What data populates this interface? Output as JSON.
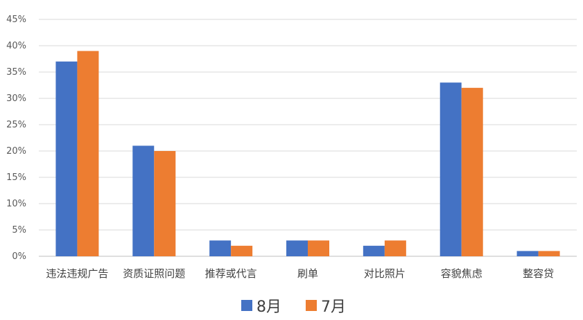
{
  "chart_data": {
    "type": "bar",
    "categories": [
      "违法违规广告",
      "资质证照问题",
      "推荐或代言",
      "刷单",
      "对比照片",
      "容貌焦虑",
      "整容贷"
    ],
    "series": [
      {
        "name": "8月",
        "values": [
          37,
          21,
          3,
          3,
          2,
          33,
          1
        ],
        "color": "#4472C4"
      },
      {
        "name": "7月",
        "values": [
          39,
          20,
          2,
          3,
          3,
          32,
          1
        ],
        "color": "#ED7D31"
      }
    ],
    "yticks": [
      "0%",
      "5%",
      "10%",
      "15%",
      "20%",
      "25%",
      "30%",
      "35%",
      "40%",
      "45%"
    ],
    "ylim": [
      0,
      45
    ],
    "grid": true,
    "legend_position": "bottom"
  }
}
